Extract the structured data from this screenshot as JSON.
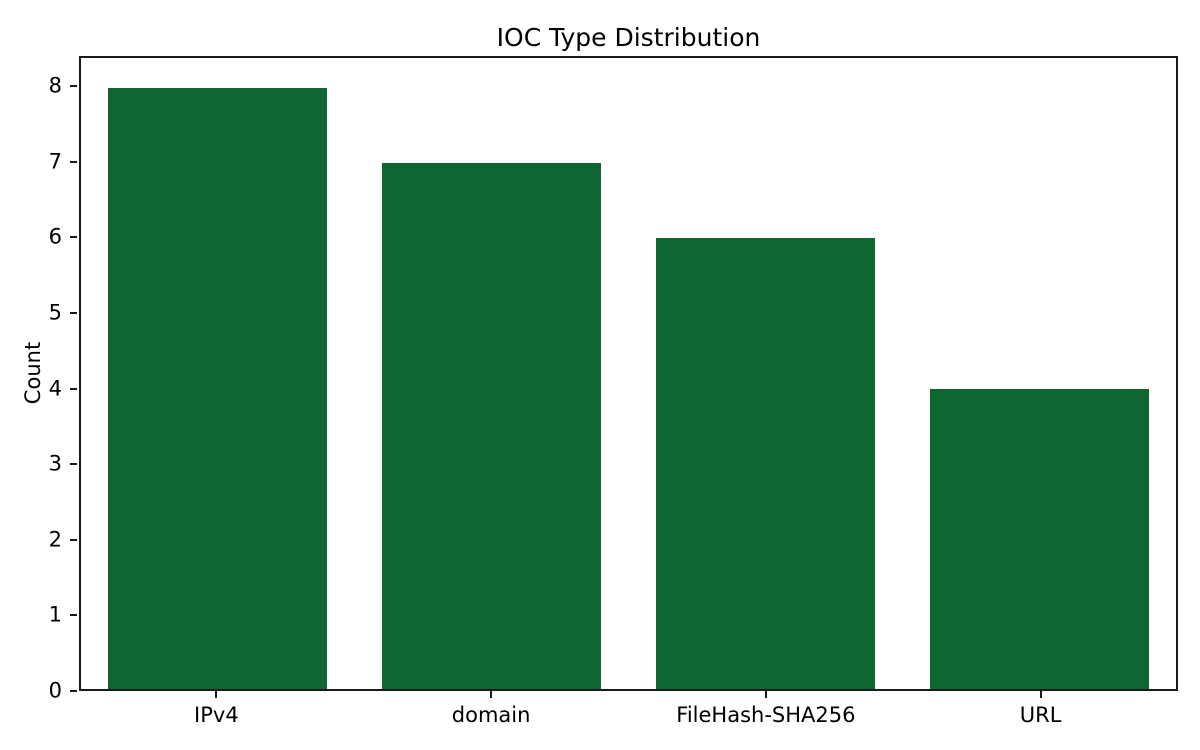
{
  "chart_data": {
    "type": "bar",
    "title": "IOC Type Distribution",
    "xlabel": "",
    "ylabel": "Count",
    "categories": [
      "IPv4",
      "domain",
      "FileHash-SHA256",
      "URL"
    ],
    "values": [
      8,
      7,
      6,
      4
    ],
    "yticks": [
      0,
      1,
      2,
      3,
      4,
      5,
      6,
      7,
      8
    ],
    "ylim": [
      0,
      8.4
    ],
    "bar_color": "#0e6631",
    "bar_width_fraction": 0.8,
    "axis_color": "#1a1a1a",
    "grid": false,
    "legend": null
  }
}
